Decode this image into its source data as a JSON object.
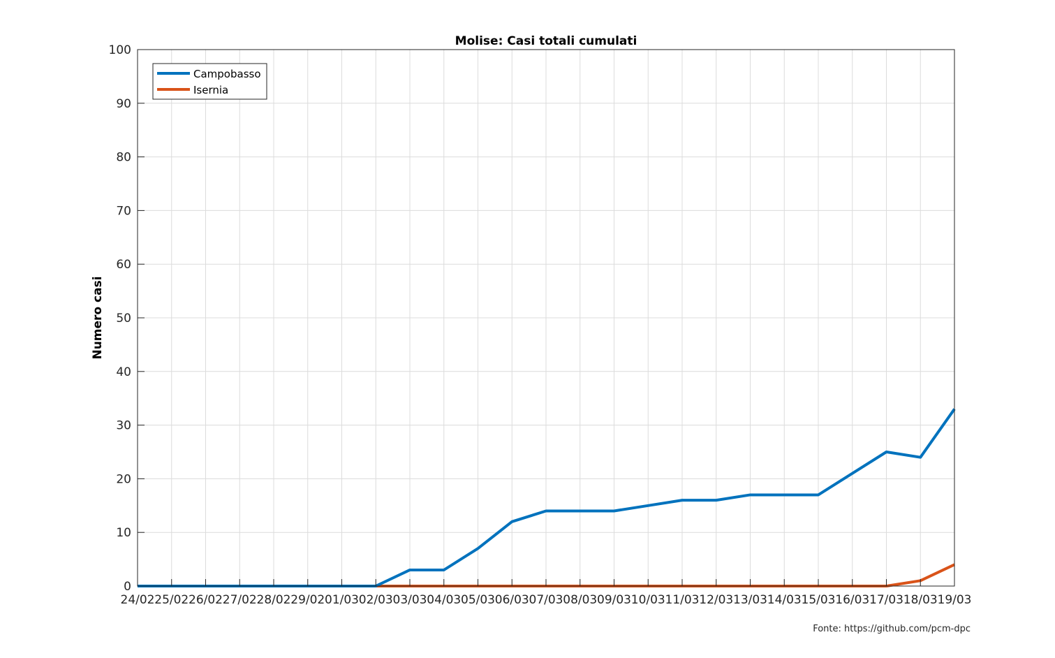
{
  "chart_data": {
    "type": "line",
    "title": "Molise: Casi totali cumulati",
    "xlabel": "",
    "ylabel": "Numero casi",
    "ylim": [
      0,
      100
    ],
    "yticks": [
      0,
      10,
      20,
      30,
      40,
      50,
      60,
      70,
      80,
      90,
      100
    ],
    "grid": true,
    "legend_position": "top-left",
    "categories": [
      "24/02",
      "25/02",
      "26/02",
      "27/02",
      "28/02",
      "29/02",
      "01/03",
      "02/03",
      "03/03",
      "04/03",
      "05/03",
      "06/03",
      "07/03",
      "08/03",
      "09/03",
      "10/03",
      "11/03",
      "12/03",
      "13/03",
      "14/03",
      "15/03",
      "16/03",
      "17/03",
      "18/03",
      "19/03"
    ],
    "series": [
      {
        "name": "Campobasso",
        "color": "#0072BD",
        "values": [
          0,
          0,
          0,
          0,
          0,
          0,
          0,
          0,
          3,
          3,
          7,
          12,
          14,
          14,
          14,
          15,
          16,
          16,
          17,
          17,
          17,
          21,
          25,
          24,
          33
        ]
      },
      {
        "name": "Isernia",
        "color": "#D95319",
        "values": [
          0,
          0,
          0,
          0,
          0,
          0,
          0,
          0,
          0,
          0,
          0,
          0,
          0,
          0,
          0,
          0,
          0,
          0,
          0,
          0,
          0,
          0,
          0,
          1,
          4
        ]
      }
    ]
  },
  "footer": {
    "source": "Fonte: https://github.com/pcm-dpc"
  }
}
